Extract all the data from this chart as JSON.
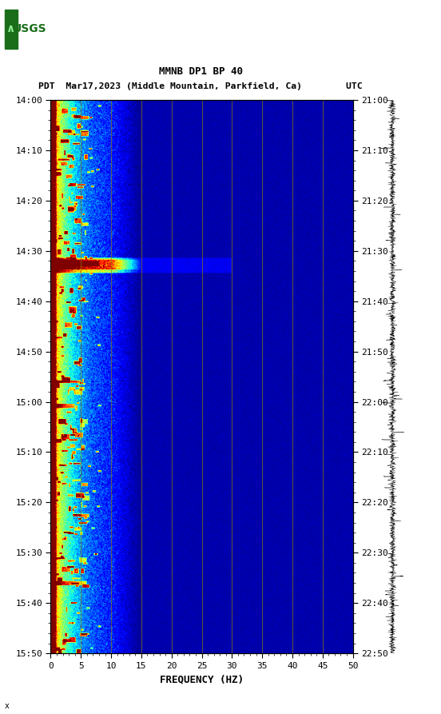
{
  "title_line1": "MMNB DP1 BP 40",
  "title_line2": "PDT  Mar17,2023 (Middle Mountain, Parkfield, Ca)        UTC",
  "xlabel": "FREQUENCY (HZ)",
  "freq_min": 0,
  "freq_max": 50,
  "freq_ticks": [
    0,
    5,
    10,
    15,
    20,
    25,
    30,
    35,
    40,
    45,
    50
  ],
  "freq_gridlines": [
    5,
    10,
    15,
    20,
    25,
    30,
    35,
    40,
    45
  ],
  "pdt_ticks": [
    "14:00",
    "14:10",
    "14:20",
    "14:30",
    "14:40",
    "14:50",
    "15:00",
    "15:10",
    "15:20",
    "15:30",
    "15:40",
    "15:50"
  ],
  "utc_ticks": [
    "21:00",
    "21:10",
    "21:20",
    "21:30",
    "21:40",
    "21:50",
    "22:00",
    "22:10",
    "22:20",
    "22:30",
    "22:40",
    "22:50"
  ],
  "colormap": "jet",
  "background_color": "#ffffff",
  "plot_bg_color": "#00008B",
  "fig_width": 5.52,
  "fig_height": 8.93
}
